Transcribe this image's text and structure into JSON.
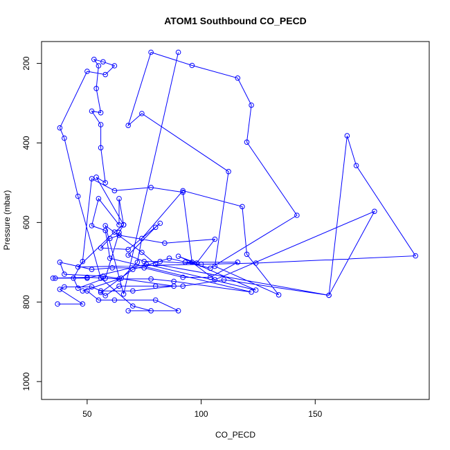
{
  "chart_data": {
    "type": "line",
    "title": "ATOM1 Southbound CO_PECD",
    "xlabel": "CO_PECD",
    "ylabel": "Pressure (mbar)",
    "xlim": [
      30,
      200
    ],
    "ylim": [
      1045,
      145
    ],
    "y_axis_reversed": true,
    "x_ticks": [
      50,
      100,
      150
    ],
    "y_ticks": [
      200,
      400,
      600,
      800,
      1000
    ],
    "color": "#0000ff",
    "marker": "open-circle",
    "grid": false,
    "series": [
      {
        "points": [
          [
            37,
            805
          ],
          [
            48,
            805
          ],
          [
            38,
            768
          ],
          [
            40,
            762
          ],
          [
            52,
            762
          ],
          [
            56,
            772
          ],
          [
            70,
            772
          ],
          [
            88,
            760
          ],
          [
            57,
            735
          ],
          [
            40,
            730
          ],
          [
            38,
            700
          ],
          [
            52,
            718
          ],
          [
            61,
            714
          ],
          [
            75,
            714
          ],
          [
            92,
            738
          ],
          [
            104,
            738
          ],
          [
            116,
            700
          ],
          [
            93,
            700
          ],
          [
            100,
            705
          ],
          [
            82,
            698
          ],
          [
            75,
            698
          ],
          [
            68,
            682
          ],
          [
            80,
            612
          ],
          [
            82,
            602
          ],
          [
            68,
            668
          ],
          [
            56,
            664
          ],
          [
            60,
            640
          ],
          [
            64,
            632
          ],
          [
            84,
            652
          ],
          [
            106,
            642
          ],
          [
            98,
            702
          ],
          [
            90,
            685
          ],
          [
            124,
            770
          ],
          [
            76,
            705
          ],
          [
            50,
            740
          ],
          [
            36,
            740
          ],
          [
            35,
            740
          ],
          [
            50,
            738
          ],
          [
            64,
            742
          ],
          [
            78,
            742
          ],
          [
            88,
            748
          ],
          [
            122,
            775
          ],
          [
            60,
            690
          ],
          [
            58,
            620
          ],
          [
            52,
            608
          ],
          [
            55,
            540
          ],
          [
            64,
            606
          ],
          [
            64,
            540
          ],
          [
            66,
            606
          ],
          [
            54,
            486
          ],
          [
            58,
            500
          ],
          [
            56,
            412
          ],
          [
            56,
            354
          ],
          [
            52,
            320
          ],
          [
            56,
            324
          ],
          [
            54,
            263
          ],
          [
            55,
            206
          ],
          [
            53,
            190
          ],
          [
            57,
            196
          ],
          [
            62,
            206
          ],
          [
            58,
            228
          ],
          [
            50,
            220
          ],
          [
            38,
            362
          ],
          [
            40,
            388
          ],
          [
            46,
            534
          ],
          [
            56,
            740
          ],
          [
            70,
            810
          ],
          [
            78,
            822
          ],
          [
            68,
            822
          ],
          [
            90,
            822
          ],
          [
            80,
            795
          ],
          [
            62,
            795
          ],
          [
            55,
            795
          ],
          [
            50,
            772
          ],
          [
            48,
            772
          ],
          [
            65,
            740
          ],
          [
            72,
            700
          ],
          [
            74,
            640
          ],
          [
            92,
            520
          ],
          [
            118,
            560
          ],
          [
            120,
            680
          ],
          [
            134,
            782
          ],
          [
            106,
            710
          ],
          [
            112,
            472
          ],
          [
            74,
            326
          ],
          [
            68,
            356
          ],
          [
            78,
            172
          ],
          [
            96,
            205
          ],
          [
            116,
            237
          ],
          [
            122,
            305
          ],
          [
            120,
            398
          ],
          [
            142,
            582
          ],
          [
            104,
            715
          ],
          [
            86,
            690
          ],
          [
            70,
            718
          ],
          [
            56,
            776
          ],
          [
            58,
            784
          ],
          [
            64,
            760
          ],
          [
            80,
            760
          ],
          [
            92,
            760
          ],
          [
            110,
            744
          ],
          [
            156,
            783
          ],
          [
            164,
            382
          ],
          [
            168,
            457
          ],
          [
            194,
            684
          ],
          [
            124,
            702
          ],
          [
            46,
            712
          ],
          [
            62,
            624
          ],
          [
            66,
            606
          ],
          [
            64,
            625
          ],
          [
            58,
            740
          ],
          [
            46,
            765
          ],
          [
            44,
            740
          ],
          [
            48,
            698
          ],
          [
            52,
            490
          ],
          [
            62,
            520
          ],
          [
            78,
            512
          ],
          [
            92,
            524
          ],
          [
            96,
            700
          ],
          [
            106,
            744
          ],
          [
            176,
            572
          ],
          [
            156,
            783
          ],
          [
            80,
            705
          ],
          [
            74,
            675
          ],
          [
            58,
            608
          ],
          [
            66,
            780
          ],
          [
            90,
            172
          ]
        ]
      }
    ]
  }
}
